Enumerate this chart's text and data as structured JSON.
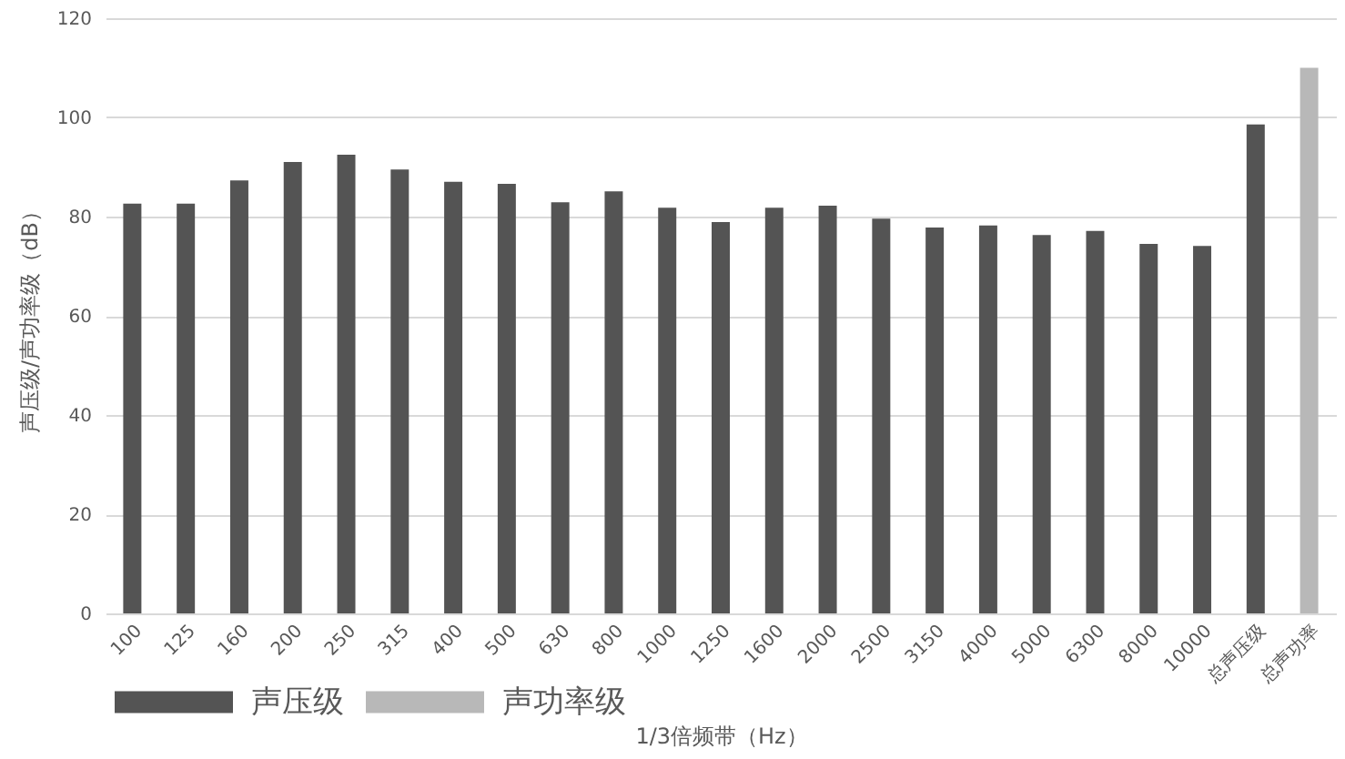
{
  "chart_data": {
    "type": "bar",
    "xlabel": "1/3倍频带（Hz）",
    "ylabel": "声压级/声功率级（dB）",
    "categories": [
      "100",
      "125",
      "160",
      "200",
      "250",
      "315",
      "400",
      "500",
      "630",
      "800",
      "1000",
      "1250",
      "1600",
      "2000",
      "2500",
      "3150",
      "4000",
      "5000",
      "6300",
      "8000",
      "10000",
      "总声压级",
      "总声功率"
    ],
    "series": [
      {
        "name": "声压级",
        "color": "#545454",
        "values": [
          82.6,
          82.6,
          87.3,
          91.0,
          92.5,
          89.5,
          87.0,
          86.6,
          82.9,
          85.1,
          81.8,
          78.9,
          81.8,
          82.2,
          79.6,
          77.8,
          78.2,
          76.3,
          77.1,
          74.5,
          74.1,
          98.6,
          null
        ]
      },
      {
        "name": "声功率级",
        "color": "#b8b8b8",
        "values": [
          null,
          null,
          null,
          null,
          null,
          null,
          null,
          null,
          null,
          null,
          null,
          null,
          null,
          null,
          null,
          null,
          null,
          null,
          null,
          null,
          null,
          null,
          110.0
        ]
      }
    ],
    "ylim": [
      0,
      120
    ],
    "yticks": [
      0,
      20,
      40,
      60,
      80,
      100,
      120
    ],
    "grid": "y",
    "legend": "bottom"
  }
}
